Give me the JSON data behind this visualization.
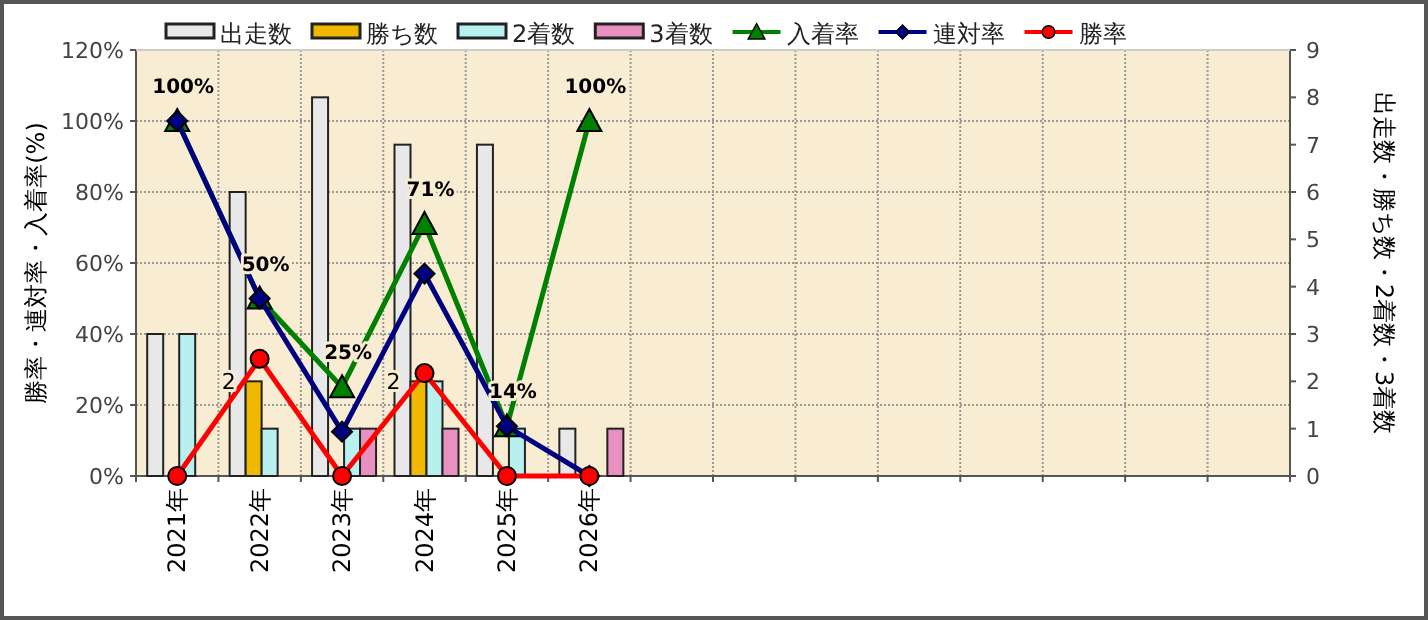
{
  "chart_data": {
    "type": "bar",
    "categories": [
      "2021年",
      "2022年",
      "2023年",
      "2024年",
      "2025年",
      "2026年",
      null,
      null,
      null,
      null,
      null,
      null,
      null,
      null
    ],
    "ylabel": "勝率・連対率・入着率(%)",
    "y2label": "出走数・勝ち数・2着数・3着数",
    "ylim": [
      0,
      120
    ],
    "yticks": [
      {
        "value": 0,
        "label": "0%"
      },
      {
        "value": 20,
        "label": "20%"
      },
      {
        "value": 40,
        "label": "40%"
      },
      {
        "value": 60,
        "label": "60%"
      },
      {
        "value": 80,
        "label": "80%"
      },
      {
        "value": 100,
        "label": "100%"
      },
      {
        "value": 120,
        "label": "120%"
      }
    ],
    "y2lim": [
      0,
      9
    ],
    "y2ticks": [
      0,
      1,
      2,
      3,
      4,
      5,
      6,
      7,
      8,
      9
    ],
    "grid": true,
    "legend": "top",
    "series": [
      {
        "name": "出走数",
        "axis": "y2",
        "color": "#e8e8e8",
        "values": [
          3,
          6,
          8,
          7,
          7,
          1,
          null,
          null,
          null,
          null,
          null,
          null,
          null,
          null
        ]
      },
      {
        "name": "勝ち数",
        "axis": "y2",
        "color": "#f0b800",
        "values": [
          0,
          2,
          0,
          2,
          0,
          0,
          null,
          null,
          null,
          null,
          null,
          null,
          null,
          null
        ],
        "value_labels": [
          null,
          "2",
          null,
          "2",
          null,
          null,
          null,
          null,
          null,
          null,
          null,
          null,
          null,
          null
        ]
      },
      {
        "name": "2着数",
        "axis": "y2",
        "color": "#b8f0f0",
        "values": [
          3,
          1,
          1,
          2,
          1,
          0,
          null,
          null,
          null,
          null,
          null,
          null,
          null,
          null
        ]
      },
      {
        "name": "3着数",
        "axis": "y2",
        "color": "#e890c0",
        "values": [
          0,
          0,
          1,
          1,
          0,
          1,
          null,
          null,
          null,
          null,
          null,
          null,
          null,
          null
        ]
      },
      {
        "name": "入着率",
        "type": "line",
        "color": "#008000",
        "marker": "triangle",
        "values": [
          100,
          50,
          25,
          71,
          14,
          100,
          null,
          null,
          null,
          null,
          null,
          null,
          null,
          null
        ],
        "value_labels": [
          "100%",
          "50%",
          "25%",
          "71%",
          "14%",
          "100%",
          null,
          null,
          null,
          null,
          null,
          null,
          null,
          null
        ]
      },
      {
        "name": "連対率",
        "type": "line",
        "color": "#000080",
        "marker": "diamond",
        "values": [
          100,
          50,
          12.5,
          57,
          14,
          0,
          null,
          null,
          null,
          null,
          null,
          null,
          null,
          null
        ]
      },
      {
        "name": "勝率",
        "type": "line",
        "color": "#ff0000",
        "marker": "circle",
        "values": [
          0,
          33,
          0,
          29,
          0,
          0,
          null,
          null,
          null,
          null,
          null,
          null,
          null,
          null
        ]
      }
    ]
  }
}
